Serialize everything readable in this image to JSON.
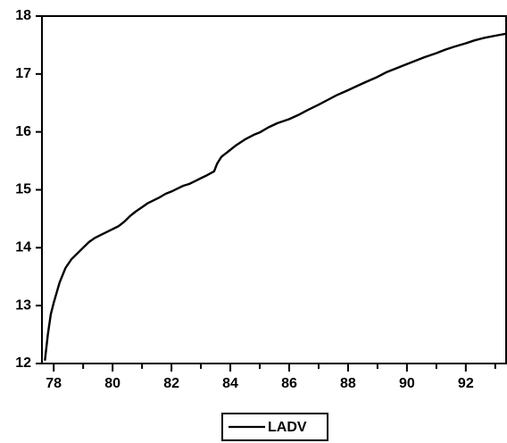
{
  "chart_data": {
    "type": "line",
    "title": "",
    "xlabel": "",
    "ylabel": "",
    "xlim": [
      77.6,
      93.4
    ],
    "ylim": [
      12,
      18
    ],
    "x_ticks": [
      78,
      80,
      82,
      84,
      86,
      88,
      90,
      92
    ],
    "x_tick_labels": [
      "78",
      "80",
      "82",
      "84",
      "86",
      "88",
      "90",
      "92"
    ],
    "y_ticks": [
      12,
      13,
      14,
      15,
      16,
      17,
      18
    ],
    "y_tick_labels": [
      "12",
      "13",
      "14",
      "15",
      "16",
      "17",
      "18"
    ],
    "grid": false,
    "legend_position": "bottom-center",
    "series": [
      {
        "name": "LADV",
        "color": "#000000",
        "x": [
          77.7,
          77.8,
          77.9,
          78.0,
          78.2,
          78.4,
          78.6,
          78.8,
          79.0,
          79.2,
          79.4,
          79.6,
          79.8,
          80.0,
          80.2,
          80.4,
          80.6,
          80.8,
          81.0,
          81.2,
          81.4,
          81.6,
          81.8,
          82.0,
          82.2,
          82.4,
          82.6,
          82.8,
          83.0,
          83.2,
          83.45,
          83.55,
          83.7,
          83.9,
          84.2,
          84.5,
          84.8,
          85.0,
          85.3,
          85.6,
          86.0,
          86.3,
          86.6,
          87.0,
          87.3,
          87.6,
          88.0,
          88.3,
          88.6,
          89.0,
          89.3,
          89.6,
          90.0,
          90.3,
          90.6,
          91.0,
          91.3,
          91.6,
          92.0,
          92.3,
          92.6,
          93.0,
          93.4
        ],
        "y": [
          12.05,
          12.5,
          12.85,
          13.05,
          13.4,
          13.65,
          13.8,
          13.9,
          14.0,
          14.1,
          14.17,
          14.22,
          14.27,
          14.32,
          14.37,
          14.45,
          14.55,
          14.63,
          14.7,
          14.77,
          14.82,
          14.87,
          14.93,
          14.97,
          15.02,
          15.07,
          15.1,
          15.15,
          15.2,
          15.25,
          15.32,
          15.45,
          15.57,
          15.65,
          15.77,
          15.87,
          15.95,
          15.99,
          16.08,
          16.15,
          16.22,
          16.29,
          16.37,
          16.47,
          16.55,
          16.63,
          16.72,
          16.79,
          16.86,
          16.95,
          17.03,
          17.09,
          17.17,
          17.23,
          17.29,
          17.36,
          17.42,
          17.47,
          17.53,
          17.58,
          17.62,
          17.66,
          17.7
        ]
      }
    ]
  }
}
